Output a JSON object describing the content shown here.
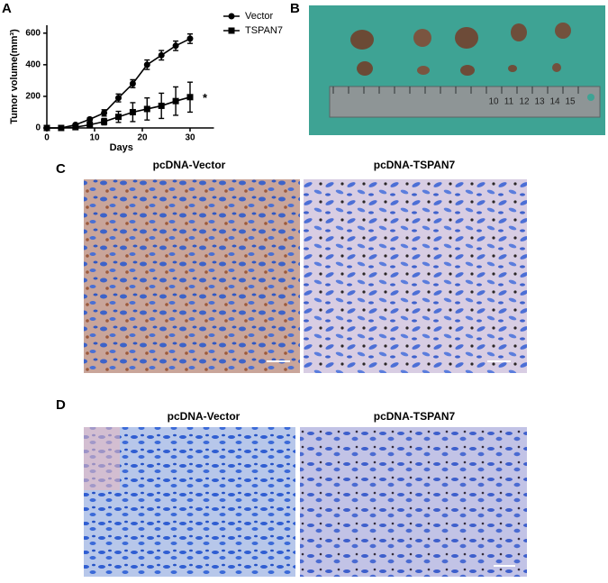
{
  "panel_labels": [
    "A",
    "B",
    "C",
    "D"
  ],
  "chart_data": {
    "type": "line",
    "xlabel": "Days",
    "ylabel": "Tumor volume(mm³)",
    "x": [
      0,
      3,
      6,
      9,
      12,
      15,
      18,
      21,
      24,
      27,
      30
    ],
    "xlim": [
      0,
      35
    ],
    "ylim": [
      0,
      650
    ],
    "xticks": [
      0,
      10,
      20,
      30
    ],
    "yticks": [
      0,
      200,
      400,
      600
    ],
    "legend": "upper right",
    "annotation": "*",
    "series": [
      {
        "name": "Vector",
        "color": "#000000",
        "marker": "circle",
        "values": [
          0,
          0,
          20,
          55,
          95,
          190,
          280,
          400,
          460,
          520,
          565
        ],
        "errors": [
          0,
          0,
          5,
          10,
          20,
          25,
          25,
          30,
          30,
          30,
          30
        ]
      },
      {
        "name": "TSPAN7",
        "color": "#000000",
        "marker": "square",
        "values": [
          0,
          0,
          5,
          20,
          40,
          70,
          100,
          120,
          140,
          170,
          195
        ],
        "errors": [
          0,
          0,
          5,
          10,
          20,
          35,
          60,
          70,
          80,
          90,
          95
        ]
      }
    ]
  },
  "panel_b": {
    "ruler_labels": [
      "10",
      "11",
      "12",
      "13",
      "14",
      "15"
    ]
  },
  "panel_c": {
    "titles": [
      "pcDNA-Vector",
      "pcDNA-TSPAN7"
    ]
  },
  "panel_d": {
    "titles": [
      "pcDNA-Vector",
      "pcDNA-TSPAN7"
    ]
  }
}
